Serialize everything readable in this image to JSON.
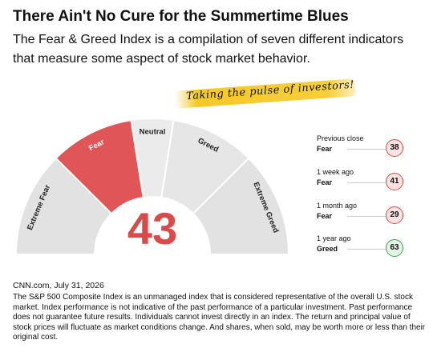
{
  "chart_data": {
    "type": "gauge",
    "title": "There Ain't No Cure for the Summertime Blues",
    "subtitle": "The Fear & Greed Index is a compilation of seven different indicators that measure some aspect of stock market behavior.",
    "tagline": "Taking the pulse of investors!",
    "ylim": [
      0,
      100
    ],
    "segments": [
      {
        "label": "Extreme Fear",
        "range": [
          0,
          25
        ],
        "color": "#e2e2e2"
      },
      {
        "label": "Fear",
        "range": [
          25,
          45
        ],
        "color": "#e05555"
      },
      {
        "label": "Neutral",
        "range": [
          45,
          55
        ],
        "color": "#ebebeb"
      },
      {
        "label": "Greed",
        "range": [
          55,
          75
        ],
        "color": "#e6e6e6"
      },
      {
        "label": "Extreme Greed",
        "range": [
          75,
          100
        ],
        "color": "#e2e2e2"
      }
    ],
    "value": 43,
    "value_color": "#d94a4a",
    "history": [
      {
        "label": "Previous close",
        "status": "Fear",
        "value": 38,
        "color": "#d94a4a",
        "fill": "#fbe3e3"
      },
      {
        "label": "1 week ago",
        "status": "Fear",
        "value": 41,
        "color": "#d94a4a",
        "fill": "#fbe3e3"
      },
      {
        "label": "1 month ago",
        "status": "Fear",
        "value": 29,
        "color": "#d94a4a",
        "fill": "#fbe3e3"
      },
      {
        "label": "1 year ago",
        "status": "Greed",
        "value": 63,
        "color": "#3a9e55",
        "fill": "#e2f4e4"
      }
    ],
    "source": "CNN.com, July 31, 2026",
    "disclaimer": "The S&P 500 Composite Index is an unmanaged index that is considered representative of the overall U.S. stock market. Index performance is not indicative of the past performance of a particular investment. Past performance does not guarantee future results. Individuals cannot invest directly in an index. The return and principal value of stock prices will fluctuate as market conditions change. And shares, when sold, may be worth more or less than their original cost."
  }
}
